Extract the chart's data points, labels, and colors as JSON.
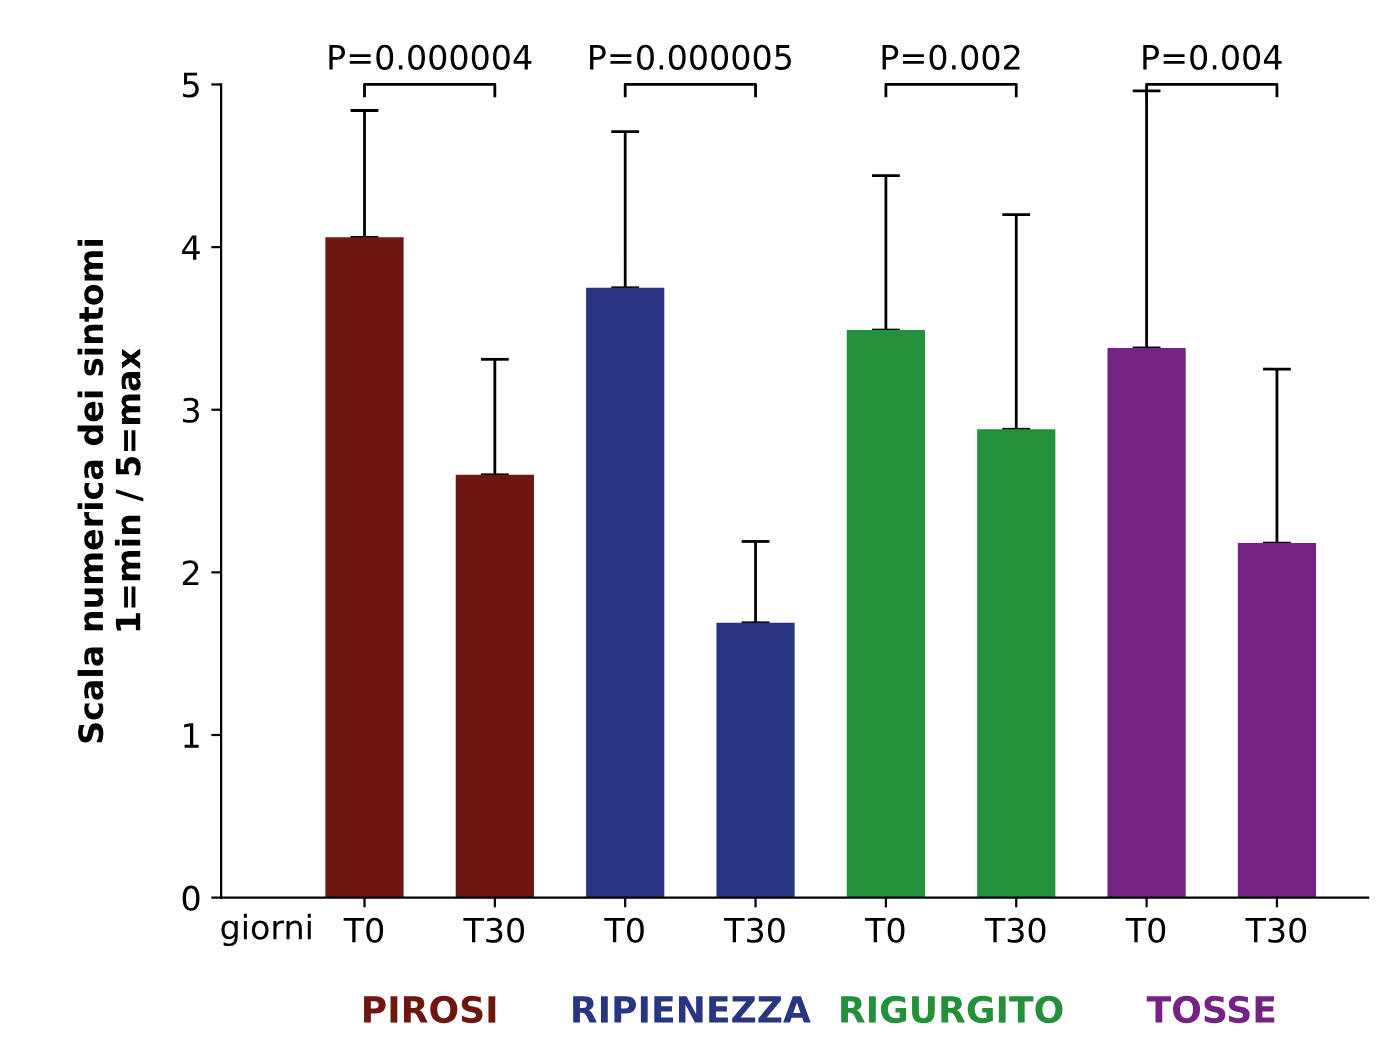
{
  "chart_data": {
    "type": "bar",
    "ylabel": "Scala numerica dei sintomi\n1=min / 5=max",
    "xlabel": "giorni",
    "categories": [
      "T0",
      "T30",
      "T0",
      "T30",
      "T0",
      "T30",
      "T0",
      "T30"
    ],
    "values": [
      4.06,
      2.6,
      3.75,
      1.69,
      3.49,
      2.88,
      3.38,
      2.18
    ],
    "errors": [
      [
        4.06,
        4.84
      ],
      [
        2.6,
        3.31
      ],
      [
        3.75,
        4.71
      ],
      [
        1.69,
        2.19
      ],
      [
        3.49,
        4.44
      ],
      [
        2.88,
        4.2
      ],
      [
        3.38,
        4.96
      ],
      [
        2.18,
        3.25
      ]
    ],
    "colors": [
      "#6e1710",
      "#6e1710",
      "#283580",
      "#283580",
      "#23903a",
      "#23903a",
      "#752382",
      "#752382"
    ],
    "ylim": [
      0,
      5
    ],
    "yticks": [
      0,
      1,
      2,
      3,
      4,
      5
    ],
    "grid": false,
    "annotations": [
      "PIROSI",
      "RIPIENEZZA",
      "RIGURGITO",
      "TOSSE",
      "P=0.000004",
      "P=0.000005",
      "P=0.002",
      "P=0.004"
    ]
  }
}
